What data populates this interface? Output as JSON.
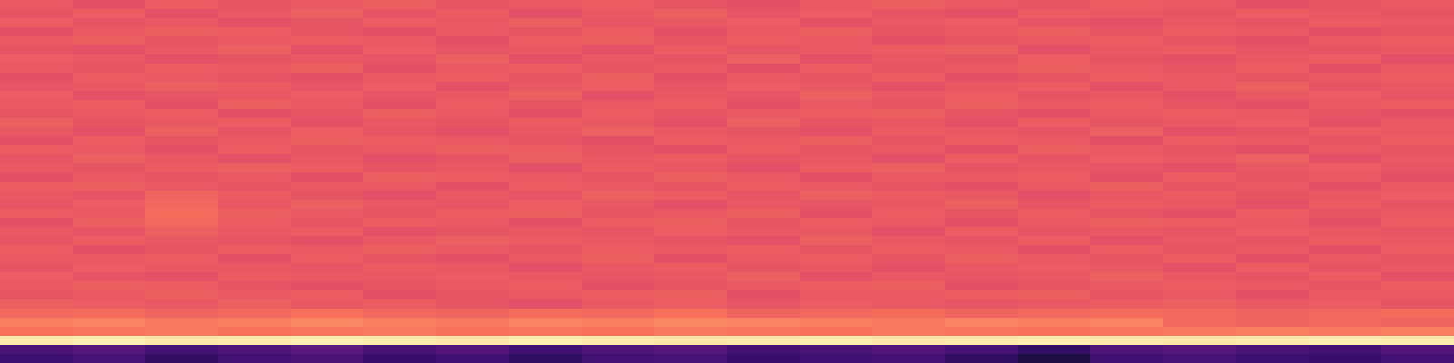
{
  "chart_data": {
    "type": "heatmap",
    "tick_labels": false,
    "zlim": [
      0,
      1
    ],
    "cells": [
      [
        0.64,
        0.62,
        0.65,
        0.63,
        0.64,
        0.66,
        0.63,
        0.64,
        0.65,
        0.63,
        0.62,
        0.64,
        0.66,
        0.64,
        0.63,
        0.65,
        0.64,
        0.62,
        0.63,
        0.64
      ],
      [
        0.63,
        0.65,
        0.62,
        0.64,
        0.66,
        0.63,
        0.65,
        0.62,
        0.64,
        0.66,
        0.63,
        0.65,
        0.63,
        0.62,
        0.65,
        0.64,
        0.63,
        0.65,
        0.64,
        0.63
      ],
      [
        0.65,
        0.63,
        0.64,
        0.62,
        0.63,
        0.65,
        0.64,
        0.66,
        0.63,
        0.64,
        0.65,
        0.62,
        0.64,
        0.65,
        0.63,
        0.62,
        0.64,
        0.63,
        0.65,
        0.64
      ],
      [
        0.62,
        0.64,
        0.66,
        0.65,
        0.63,
        0.62,
        0.64,
        0.63,
        0.65,
        0.62,
        0.64,
        0.66,
        0.63,
        0.64,
        0.66,
        0.63,
        0.65,
        0.64,
        0.62,
        0.63
      ],
      [
        0.64,
        0.66,
        0.63,
        0.64,
        0.65,
        0.64,
        0.62,
        0.65,
        0.66,
        0.63,
        0.65,
        0.64,
        0.62,
        0.63,
        0.64,
        0.65,
        0.63,
        0.62,
        0.64,
        0.65
      ],
      [
        0.63,
        0.62,
        0.64,
        0.66,
        0.62,
        0.65,
        0.63,
        0.64,
        0.62,
        0.65,
        0.63,
        0.64,
        0.65,
        0.66,
        0.62,
        0.64,
        0.65,
        0.63,
        0.63,
        0.64
      ],
      [
        0.65,
        0.64,
        0.62,
        0.63,
        0.64,
        0.63,
        0.66,
        0.62,
        0.64,
        0.63,
        0.66,
        0.62,
        0.64,
        0.63,
        0.65,
        0.63,
        0.62,
        0.64,
        0.65,
        0.62
      ],
      [
        0.64,
        0.63,
        0.65,
        0.64,
        0.66,
        0.62,
        0.64,
        0.65,
        0.63,
        0.64,
        0.62,
        0.65,
        0.63,
        0.64,
        0.66,
        0.64,
        0.63,
        0.65,
        0.62,
        0.64
      ],
      [
        0.62,
        0.65,
        0.64,
        0.63,
        0.62,
        0.64,
        0.65,
        0.63,
        0.66,
        0.62,
        0.64,
        0.63,
        0.65,
        0.62,
        0.63,
        0.65,
        0.64,
        0.63,
        0.64,
        0.65
      ],
      [
        0.63,
        0.64,
        0.66,
        0.65,
        0.63,
        0.65,
        0.62,
        0.64,
        0.65,
        0.63,
        0.65,
        0.64,
        0.62,
        0.64,
        0.65,
        0.62,
        0.64,
        0.66,
        0.63,
        0.64
      ],
      [
        0.65,
        0.62,
        0.63,
        0.64,
        0.65,
        0.63,
        0.64,
        0.66,
        0.62,
        0.64,
        0.63,
        0.66,
        0.64,
        0.65,
        0.63,
        0.64,
        0.62,
        0.64,
        0.65,
        0.63
      ],
      [
        0.64,
        0.65,
        0.62,
        0.66,
        0.64,
        0.62,
        0.65,
        0.63,
        0.64,
        0.65,
        0.62,
        0.64,
        0.63,
        0.66,
        0.64,
        0.65,
        0.63,
        0.62,
        0.64,
        0.65
      ],
      [
        0.63,
        0.64,
        0.65,
        0.62,
        0.63,
        0.66,
        0.64,
        0.62,
        0.65,
        0.63,
        0.64,
        0.65,
        0.66,
        0.63,
        0.62,
        0.64,
        0.65,
        0.64,
        0.63,
        0.62
      ],
      [
        0.66,
        0.63,
        0.64,
        0.65,
        0.62,
        0.64,
        0.63,
        0.65,
        0.64,
        0.62,
        0.66,
        0.63,
        0.64,
        0.62,
        0.65,
        0.63,
        0.64,
        0.65,
        0.62,
        0.64
      ],
      [
        0.64,
        0.62,
        0.66,
        0.63,
        0.65,
        0.63,
        0.62,
        0.64,
        0.66,
        0.64,
        0.63,
        0.62,
        0.65,
        0.64,
        0.63,
        0.66,
        0.62,
        0.63,
        0.65,
        0.64
      ],
      [
        0.62,
        0.65,
        0.63,
        0.64,
        0.66,
        0.65,
        0.64,
        0.63,
        0.62,
        0.65,
        0.64,
        0.66,
        0.63,
        0.65,
        0.64,
        0.62,
        0.65,
        0.64,
        0.63,
        0.65
      ],
      [
        0.65,
        0.64,
        0.62,
        0.65,
        0.63,
        0.64,
        0.66,
        0.65,
        0.63,
        0.62,
        0.65,
        0.63,
        0.64,
        0.62,
        0.66,
        0.64,
        0.63,
        0.62,
        0.64,
        0.63
      ],
      [
        0.63,
        0.66,
        0.64,
        0.62,
        0.64,
        0.62,
        0.63,
        0.66,
        0.64,
        0.65,
        0.63,
        0.64,
        0.62,
        0.65,
        0.63,
        0.65,
        0.64,
        0.66,
        0.62,
        0.64
      ],
      [
        0.64,
        0.63,
        0.65,
        0.66,
        0.65,
        0.63,
        0.64,
        0.62,
        0.65,
        0.64,
        0.62,
        0.65,
        0.66,
        0.63,
        0.64,
        0.63,
        0.62,
        0.64,
        0.65,
        0.63
      ],
      [
        0.62,
        0.64,
        0.63,
        0.64,
        0.62,
        0.66,
        0.65,
        0.64,
        0.63,
        0.66,
        0.64,
        0.62,
        0.64,
        0.64,
        0.65,
        0.62,
        0.65,
        0.63,
        0.64,
        0.62
      ],
      [
        0.65,
        0.66,
        0.64,
        0.63,
        0.64,
        0.64,
        0.62,
        0.65,
        0.64,
        0.63,
        0.65,
        0.64,
        0.63,
        0.62,
        0.64,
        0.66,
        0.63,
        0.64,
        0.62,
        0.64
      ],
      [
        0.64,
        0.63,
        0.67,
        0.65,
        0.63,
        0.62,
        0.64,
        0.63,
        0.66,
        0.65,
        0.63,
        0.66,
        0.65,
        0.64,
        0.62,
        0.64,
        0.65,
        0.63,
        0.64,
        0.65
      ],
      [
        0.63,
        0.65,
        0.68,
        0.64,
        0.66,
        0.64,
        0.63,
        0.65,
        0.64,
        0.62,
        0.64,
        0.63,
        0.64,
        0.66,
        0.63,
        0.65,
        0.64,
        0.62,
        0.65,
        0.63
      ],
      [
        0.65,
        0.64,
        0.69,
        0.66,
        0.64,
        0.63,
        0.65,
        0.66,
        0.63,
        0.64,
        0.66,
        0.62,
        0.65,
        0.63,
        0.65,
        0.63,
        0.62,
        0.65,
        0.63,
        0.64
      ],
      [
        0.62,
        0.66,
        0.68,
        0.65,
        0.63,
        0.65,
        0.64,
        0.62,
        0.65,
        0.66,
        0.63,
        0.65,
        0.64,
        0.62,
        0.64,
        0.66,
        0.65,
        0.64,
        0.62,
        0.65
      ],
      [
        0.64,
        0.63,
        0.66,
        0.64,
        0.65,
        0.62,
        0.63,
        0.64,
        0.63,
        0.65,
        0.64,
        0.64,
        0.62,
        0.65,
        0.63,
        0.64,
        0.63,
        0.65,
        0.64,
        0.63
      ],
      [
        0.63,
        0.65,
        0.64,
        0.63,
        0.62,
        0.64,
        0.66,
        0.65,
        0.64,
        0.63,
        0.62,
        0.66,
        0.64,
        0.63,
        0.65,
        0.62,
        0.64,
        0.63,
        0.65,
        0.64
      ],
      [
        0.65,
        0.62,
        0.63,
        0.65,
        0.64,
        0.66,
        0.64,
        0.63,
        0.65,
        0.64,
        0.65,
        0.63,
        0.65,
        0.64,
        0.62,
        0.65,
        0.63,
        0.64,
        0.62,
        0.65
      ],
      [
        0.64,
        0.64,
        0.65,
        0.62,
        0.65,
        0.63,
        0.62,
        0.64,
        0.66,
        0.62,
        0.64,
        0.65,
        0.63,
        0.66,
        0.64,
        0.63,
        0.65,
        0.62,
        0.64,
        0.63
      ],
      [
        0.63,
        0.65,
        0.64,
        0.64,
        0.63,
        0.65,
        0.64,
        0.62,
        0.64,
        0.65,
        0.63,
        0.64,
        0.62,
        0.64,
        0.65,
        0.64,
        0.62,
        0.65,
        0.63,
        0.64
      ],
      [
        0.65,
        0.63,
        0.62,
        0.65,
        0.64,
        0.64,
        0.65,
        0.64,
        0.63,
        0.64,
        0.66,
        0.62,
        0.64,
        0.63,
        0.64,
        0.66,
        0.64,
        0.63,
        0.65,
        0.62
      ],
      [
        0.64,
        0.66,
        0.65,
        0.63,
        0.62,
        0.63,
        0.64,
        0.65,
        0.62,
        0.63,
        0.64,
        0.65,
        0.66,
        0.62,
        0.63,
        0.64,
        0.65,
        0.64,
        0.63,
        0.65
      ],
      [
        0.63,
        0.64,
        0.66,
        0.64,
        0.65,
        0.62,
        0.63,
        0.64,
        0.65,
        0.66,
        0.62,
        0.64,
        0.64,
        0.65,
        0.66,
        0.63,
        0.64,
        0.62,
        0.64,
        0.64
      ],
      [
        0.66,
        0.65,
        0.64,
        0.66,
        0.64,
        0.65,
        0.63,
        0.62,
        0.64,
        0.65,
        0.63,
        0.65,
        0.64,
        0.63,
        0.64,
        0.65,
        0.66,
        0.64,
        0.65,
        0.63
      ],
      [
        0.68,
        0.69,
        0.67,
        0.68,
        0.7,
        0.68,
        0.67,
        0.69,
        0.68,
        0.7,
        0.67,
        0.68,
        0.69,
        0.67,
        0.68,
        0.69,
        0.68,
        0.67,
        0.68,
        0.69
      ],
      [
        0.73,
        0.74,
        0.72,
        0.73,
        0.75,
        0.73,
        0.72,
        0.74,
        0.73,
        0.75,
        0.74,
        0.73,
        0.72,
        0.74,
        0.73,
        0.74,
        0.68,
        0.67,
        0.68,
        0.67
      ],
      [
        0.7,
        0.71,
        0.72,
        0.7,
        0.71,
        0.72,
        0.7,
        0.71,
        0.7,
        0.72,
        0.71,
        0.7,
        0.72,
        0.71,
        0.7,
        0.71,
        0.72,
        0.73,
        0.72,
        0.73
      ],
      [
        0.96,
        0.97,
        0.95,
        0.96,
        0.97,
        0.96,
        0.95,
        0.97,
        0.96,
        0.95,
        0.96,
        0.97,
        0.95,
        0.96,
        0.97,
        0.96,
        0.95,
        0.96,
        0.97,
        0.96
      ],
      [
        0.24,
        0.27,
        0.22,
        0.25,
        0.28,
        0.23,
        0.26,
        0.21,
        0.25,
        0.27,
        0.22,
        0.24,
        0.26,
        0.23,
        0.18,
        0.25,
        0.27,
        0.24,
        0.22,
        0.26
      ],
      [
        0.2,
        0.23,
        0.18,
        0.22,
        0.24,
        0.19,
        0.21,
        0.17,
        0.22,
        0.23,
        0.19,
        0.21,
        0.22,
        0.18,
        0.12,
        0.21,
        0.23,
        0.2,
        0.19,
        0.22
      ]
    ]
  }
}
